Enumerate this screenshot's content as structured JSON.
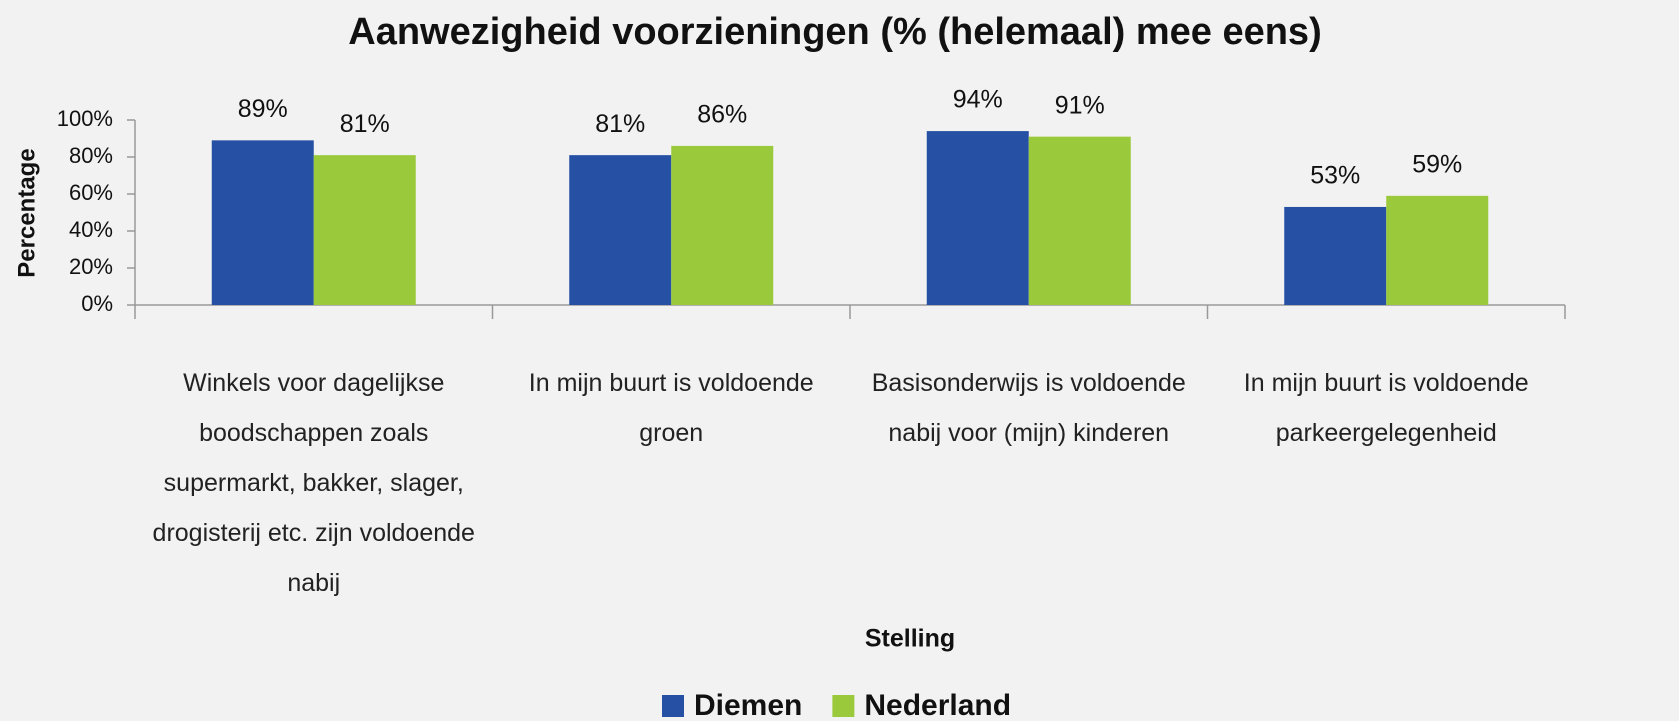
{
  "chart_data": {
    "type": "bar",
    "title": "Aanwezigheid voorzieningen (% (helemaal) mee eens)",
    "x_label": "Stelling",
    "y_label": "Percentage",
    "categories": [
      "Winkels voor dagelijkse boodschappen zoals supermarkt, bakker, slager, drogisterij etc. zijn voldoende nabij",
      "In mijn buurt is voldoende groen",
      "Basisonderwijs is voldoende nabij voor (mijn) kinderen",
      "In mijn buurt is voldoende parkeergelegenheid"
    ],
    "series": [
      {
        "name": "Diemen",
        "color": "#2550a4",
        "values": [
          89,
          81,
          94,
          53
        ],
        "value_labels": [
          "89%",
          "81%",
          "94%",
          "53%"
        ]
      },
      {
        "name": "Nederland",
        "color": "#9aca3c",
        "values": [
          81,
          86,
          91,
          59
        ],
        "value_labels": [
          "81%",
          "86%",
          "91%",
          "59%"
        ]
      }
    ],
    "ylim": [
      0,
      100
    ],
    "yticks": [
      {
        "value": 0,
        "label": "0%"
      },
      {
        "value": 20,
        "label": "20%"
      },
      {
        "value": 40,
        "label": "40%"
      },
      {
        "value": 60,
        "label": "60%"
      },
      {
        "value": 80,
        "label": "80%"
      },
      {
        "value": 100,
        "label": "100%"
      }
    ],
    "legend": "bottom"
  }
}
